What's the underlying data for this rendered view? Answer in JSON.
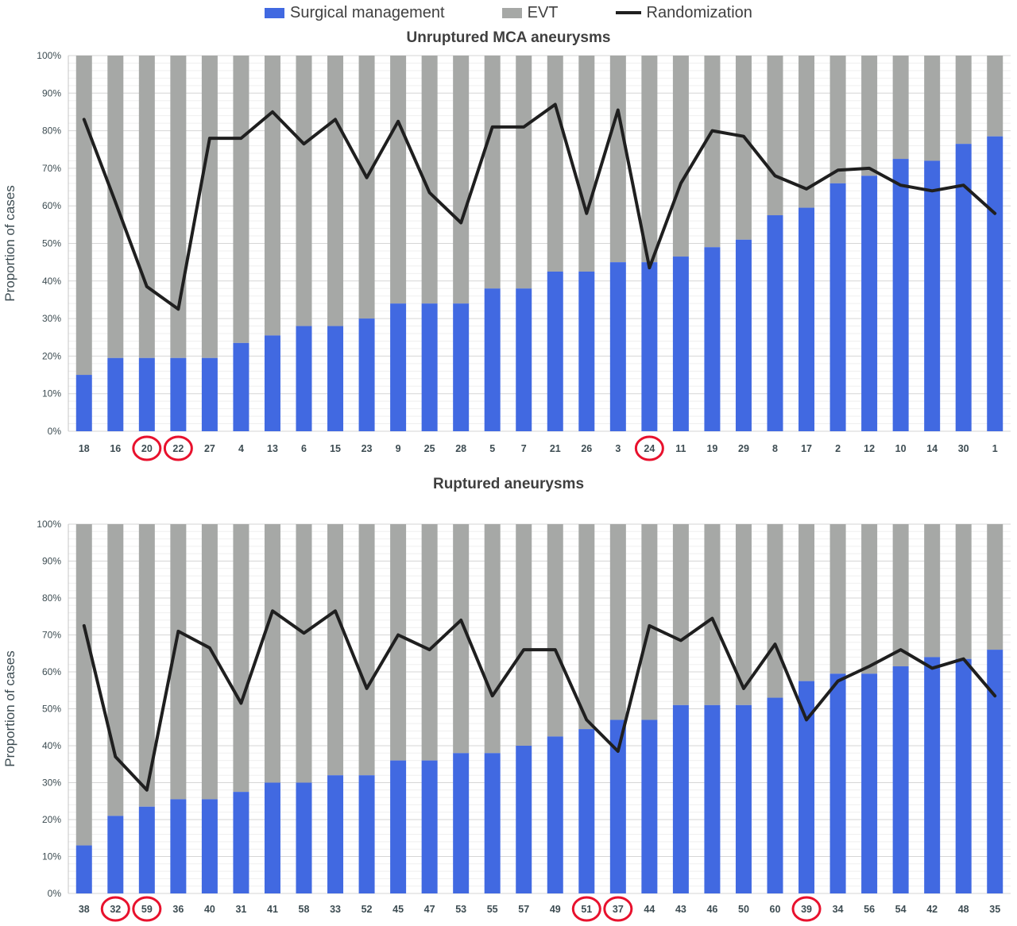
{
  "legend": {
    "items": [
      {
        "label": "Surgical management",
        "swatch": "blue-rect"
      },
      {
        "label": "EVT",
        "swatch": "gray-rect"
      },
      {
        "label": "Randomization",
        "swatch": "black-line"
      }
    ]
  },
  "colors": {
    "surgical": "#4169e1",
    "evt": "#a6a8a6",
    "randomization": "#1f1f1f",
    "circle_red": "#e8112d",
    "tick_text": "#3d4c52",
    "grid_major": "#d6d6d6",
    "grid_minor": "#efefef",
    "axis_spine": "#c4c4c4"
  },
  "chart_data": [
    {
      "type": "bar",
      "subtype": "stacked-100pct-with-line",
      "title": "Unruptured MCA aneurysms",
      "ylabel": "Proportion of cases",
      "ylim": [
        0,
        100
      ],
      "grid": "horizontal major 10% + minor 2%",
      "legend_position": "top",
      "ytick_labels": [
        "0%",
        "10%",
        "20%",
        "30%",
        "40%",
        "50%",
        "60%",
        "70%",
        "80%",
        "90%",
        "100%"
      ],
      "categories": [
        "18",
        "16",
        "20",
        "22",
        "27",
        "4",
        "13",
        "6",
        "15",
        "23",
        "9",
        "25",
        "28",
        "5",
        "7",
        "21",
        "26",
        "3",
        "24",
        "11",
        "19",
        "29",
        "8",
        "17",
        "2",
        "12",
        "10",
        "14",
        "30",
        "1"
      ],
      "circled_categories": [
        "20",
        "22",
        "24"
      ],
      "series": [
        {
          "name": "Surgical management",
          "type": "bar",
          "color": "#4169e1",
          "values": [
            15,
            19.5,
            19.5,
            19.5,
            19.5,
            23.5,
            25.5,
            28,
            28,
            30,
            34,
            34,
            34,
            38,
            38,
            42.5,
            42.5,
            45,
            45,
            46.5,
            49,
            51,
            57.5,
            59.5,
            66,
            68,
            72.5,
            72,
            76.5,
            78.5
          ]
        },
        {
          "name": "EVT",
          "type": "bar",
          "color": "#a6a8a6",
          "values": [
            85,
            80.5,
            80.5,
            80.5,
            80.5,
            76.5,
            74.5,
            72,
            72,
            70,
            66,
            66,
            66,
            62,
            62,
            57.5,
            57.5,
            55,
            55,
            53.5,
            51,
            49,
            42.5,
            40.5,
            34,
            32,
            27.5,
            28,
            23.5,
            21.5
          ]
        },
        {
          "name": "Randomization",
          "type": "line",
          "color": "#1f1f1f",
          "values": [
            83,
            61,
            38.5,
            32.5,
            78,
            78,
            85,
            76.5,
            83,
            67.5,
            82.5,
            63.5,
            55.5,
            81,
            81,
            87,
            58,
            85.5,
            43.5,
            66,
            80,
            78.5,
            68,
            64.5,
            69.5,
            70,
            65.5,
            64,
            65.5,
            58
          ]
        }
      ]
    },
    {
      "type": "bar",
      "subtype": "stacked-100pct-with-line",
      "title": "Ruptured aneurysms",
      "ylabel": "Proportion of cases",
      "ylim": [
        0,
        100
      ],
      "grid": "horizontal major 10% + minor 2%",
      "legend_position": "top",
      "ytick_labels": [
        "0%",
        "10%",
        "20%",
        "30%",
        "40%",
        "50%",
        "60%",
        "70%",
        "80%",
        "90%",
        "100%"
      ],
      "categories": [
        "38",
        "32",
        "59",
        "36",
        "40",
        "31",
        "41",
        "58",
        "33",
        "52",
        "45",
        "47",
        "53",
        "55",
        "57",
        "49",
        "51",
        "37",
        "44",
        "43",
        "46",
        "50",
        "60",
        "39",
        "34",
        "56",
        "54",
        "42",
        "48",
        "35"
      ],
      "circled_categories": [
        "32",
        "59",
        "51",
        "37",
        "39"
      ],
      "series": [
        {
          "name": "Surgical management",
          "type": "bar",
          "color": "#4169e1",
          "values": [
            13,
            21,
            23.5,
            25.5,
            25.5,
            27.5,
            30,
            30,
            32,
            32,
            36,
            36,
            38,
            38,
            40,
            42.5,
            44.5,
            47,
            47,
            51,
            51,
            51,
            53,
            57.5,
            59.5,
            59.5,
            61.5,
            64,
            63.5,
            66
          ]
        },
        {
          "name": "EVT",
          "type": "bar",
          "color": "#a6a8a6",
          "values": [
            87,
            79,
            76.5,
            74.5,
            74.5,
            72.5,
            70,
            70,
            68,
            68,
            64,
            64,
            62,
            62,
            60,
            57.5,
            55.5,
            53,
            53,
            49,
            49,
            49,
            47,
            42.5,
            40.5,
            40.5,
            38.5,
            36,
            36.5,
            34
          ]
        },
        {
          "name": "Randomization",
          "type": "line",
          "color": "#1f1f1f",
          "values": [
            72.5,
            37,
            28,
            71,
            66.5,
            51.5,
            76.5,
            70.5,
            76.5,
            55.5,
            70,
            66,
            74,
            53.5,
            66,
            66,
            47,
            38.5,
            72.5,
            68.5,
            74.5,
            55.5,
            67.5,
            47,
            57.5,
            61.5,
            66,
            61,
            63.5,
            53.5
          ]
        }
      ]
    }
  ]
}
